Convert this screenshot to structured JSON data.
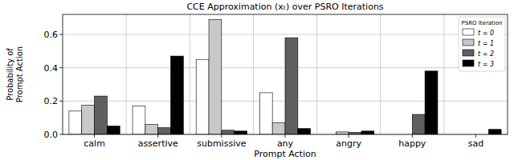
{
  "chart_data": {
    "type": "bar",
    "title": "CCE Approximation (xₜ) over PSRO Iterations",
    "x_label": "Prompt Action",
    "y_label": "Probability of\nPrompt Action",
    "legend_title": "PSRO Iteration",
    "categories": [
      "calm",
      "assertive",
      "submissive",
      "any",
      "angry",
      "happy",
      "sad"
    ],
    "series": [
      {
        "name": "t = 0",
        "color": "#ffffff",
        "values": [
          0.14,
          0.17,
          0.45,
          0.25,
          0.0,
          0.0,
          0.0
        ]
      },
      {
        "name": "t = 1",
        "color": "#c8c8c8",
        "values": [
          0.175,
          0.06,
          0.69,
          0.07,
          0.015,
          0.0,
          0.0
        ]
      },
      {
        "name": "t = 2",
        "color": "#5f5f5f",
        "values": [
          0.23,
          0.04,
          0.025,
          0.58,
          0.012,
          0.12,
          0.0
        ]
      },
      {
        "name": "t = 3",
        "color": "#000000",
        "values": [
          0.05,
          0.47,
          0.02,
          0.035,
          0.02,
          0.38,
          0.03
        ]
      }
    ],
    "ylim": [
      0,
      0.72
    ],
    "yticks": [
      {
        "value": 0,
        "label": "0.0"
      },
      0.2,
      0.4,
      0.6
    ],
    "grid": true,
    "legend": "upper right"
  }
}
